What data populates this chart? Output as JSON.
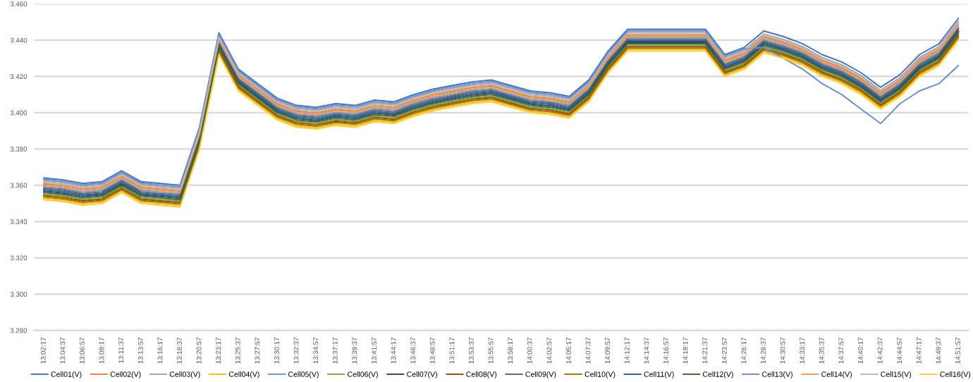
{
  "chart_data": {
    "type": "line",
    "categories": [
      "13:02:17",
      "13:04:37",
      "13:06:57",
      "13:09:17",
      "13:11:37",
      "13:13:57",
      "13:16:17",
      "13:18:37",
      "13:20:57",
      "13:23:17",
      "13:25:37",
      "13:27:57",
      "13:30:17",
      "13:32:37",
      "13:34:57",
      "13:37:17",
      "13:39:37",
      "13:41:57",
      "13:44:17",
      "13:46:37",
      "13:48:57",
      "13:51:17",
      "13:53:37",
      "13:55:57",
      "13:58:17",
      "14:00:37",
      "14:02:57",
      "14:05:17",
      "14:07:37",
      "14:09:57",
      "14:12:17",
      "14:14:37",
      "14:16:57",
      "14:19:17",
      "14:21:37",
      "14:23:57",
      "14:26:17",
      "14:28:37",
      "14:30:57",
      "14:33:17",
      "14:35:37",
      "14:37:57",
      "14:40:17",
      "14:42:37",
      "14:44:57",
      "14:47:17",
      "14:49:37",
      "14:51:57"
    ],
    "ylim": [
      3.28,
      3.46
    ],
    "yticks": [
      {
        "value": 3.28,
        "label": "3.280"
      },
      {
        "value": 3.3,
        "label": "3.300"
      },
      {
        "value": 3.32,
        "label": "3.320"
      },
      {
        "value": 3.34,
        "label": "3.340"
      },
      {
        "value": 3.36,
        "label": "3.360"
      },
      {
        "value": 3.38,
        "label": "3.380"
      },
      {
        "value": 3.4,
        "label": "3.400"
      },
      {
        "value": 3.42,
        "label": "3.420"
      },
      {
        "value": 3.44,
        "label": "3.440"
      },
      {
        "value": 3.46,
        "label": "3.460"
      }
    ],
    "grid": "y",
    "legend": "bottom",
    "marker": "none",
    "line_style": "solid",
    "series": [
      {
        "name": "Cell01(V)",
        "color": "#4472c4",
        "values": [
          3.364,
          3.363,
          3.361,
          3.362,
          3.368,
          3.362,
          3.361,
          3.36,
          3.392,
          3.444,
          3.424,
          3.416,
          3.408,
          3.404,
          3.403,
          3.405,
          3.404,
          3.407,
          3.406,
          3.41,
          3.413,
          3.415,
          3.417,
          3.418,
          3.415,
          3.412,
          3.411,
          3.409,
          3.418,
          3.434,
          3.446,
          3.446,
          3.446,
          3.446,
          3.446,
          3.432,
          3.436,
          3.445,
          3.442,
          3.438,
          3.432,
          3.428,
          3.422,
          3.414,
          3.421,
          3.432,
          3.438,
          3.452
        ]
      },
      {
        "name": "Cell02(V)",
        "color": "#ed7d31",
        "values": [
          3.3608,
          3.3598,
          3.3578,
          3.3588,
          3.3648,
          3.3588,
          3.3578,
          3.3568,
          3.3888,
          3.4408,
          3.4208,
          3.4128,
          3.4048,
          3.4008,
          3.3998,
          3.4018,
          3.4008,
          3.4038,
          3.4028,
          3.4068,
          3.4098,
          3.4118,
          3.4138,
          3.4148,
          3.4118,
          3.4088,
          3.4078,
          3.4058,
          3.4148,
          3.4308,
          3.4428,
          3.4428,
          3.4428,
          3.4428,
          3.4428,
          3.4288,
          3.4328,
          3.4418,
          3.4388,
          3.4348,
          3.4288,
          3.4248,
          3.4188,
          3.4108,
          3.4178,
          3.4288,
          3.4348,
          3.4488
        ]
      },
      {
        "name": "Cell03(V)",
        "color": "#a5a5a5",
        "values": [
          3.3624,
          3.3614,
          3.3594,
          3.3604,
          3.3664,
          3.3604,
          3.3594,
          3.3584,
          3.3904,
          3.4424,
          3.4224,
          3.4144,
          3.4064,
          3.4024,
          3.4014,
          3.4034,
          3.4024,
          3.4054,
          3.4044,
          3.4084,
          3.4114,
          3.4134,
          3.4154,
          3.4164,
          3.4134,
          3.4104,
          3.4094,
          3.4074,
          3.4164,
          3.4324,
          3.4444,
          3.4444,
          3.4444,
          3.4444,
          3.4444,
          3.4304,
          3.4344,
          3.4434,
          3.4404,
          3.4364,
          3.4304,
          3.4264,
          3.4204,
          3.4124,
          3.4194,
          3.4304,
          3.4364,
          3.4504
        ]
      },
      {
        "name": "Cell04(V)",
        "color": "#ffc000",
        "values": [
          3.3528,
          3.3518,
          3.3498,
          3.3508,
          3.3568,
          3.3508,
          3.3498,
          3.3488,
          3.3808,
          3.4328,
          3.4128,
          3.4048,
          3.3968,
          3.3928,
          3.3918,
          3.3938,
          3.3928,
          3.3958,
          3.3948,
          3.3988,
          3.4018,
          3.4038,
          3.4058,
          3.4068,
          3.4038,
          3.4008,
          3.3998,
          3.3978,
          3.4068,
          3.4228,
          3.4348,
          3.4348,
          3.4348,
          3.4348,
          3.4348,
          3.4208,
          3.4248,
          3.4338,
          3.4308,
          3.4268,
          3.4208,
          3.4168,
          3.4108,
          3.4028,
          3.4098,
          3.4208,
          3.4268,
          3.4408
        ]
      },
      {
        "name": "Cell05(V)",
        "color": "#5b9bd5",
        "values": [
          3.3592,
          3.3582,
          3.3562,
          3.3572,
          3.3632,
          3.3572,
          3.3562,
          3.3552,
          3.3872,
          3.4392,
          3.4192,
          3.4112,
          3.4032,
          3.3992,
          3.3982,
          3.4002,
          3.3992,
          3.4022,
          3.4012,
          3.4052,
          3.4082,
          3.4102,
          3.4122,
          3.4132,
          3.4102,
          3.4072,
          3.4062,
          3.4042,
          3.4132,
          3.4292,
          3.4412,
          3.4412,
          3.4412,
          3.4412,
          3.4412,
          3.4272,
          3.4312,
          3.4402,
          3.4372,
          3.4332,
          3.4272,
          3.4232,
          3.4172,
          3.4092,
          3.4162,
          3.4272,
          3.4332,
          3.4472
        ]
      },
      {
        "name": "Cell06(V)",
        "color": "#70ad47",
        "values": [
          3.3552,
          3.3542,
          3.3522,
          3.3532,
          3.3592,
          3.3532,
          3.3522,
          3.3512,
          3.3832,
          3.4352,
          3.4152,
          3.4072,
          3.3992,
          3.3952,
          3.3942,
          3.3962,
          3.3952,
          3.3982,
          3.3972,
          3.4012,
          3.4042,
          3.4062,
          3.4082,
          3.4092,
          3.4062,
          3.4032,
          3.4022,
          3.4002,
          3.4092,
          3.4252,
          3.4372,
          3.4372,
          3.4372,
          3.4372,
          3.4372,
          3.4232,
          3.4272,
          3.4362,
          3.4332,
          3.4292,
          3.4232,
          3.4192,
          3.4132,
          3.4052,
          3.4122,
          3.4232,
          3.4292,
          3.4432
        ]
      },
      {
        "name": "Cell07(V)",
        "color": "#264478",
        "values": [
          3.3568,
          3.3558,
          3.3538,
          3.3548,
          3.3608,
          3.3548,
          3.3538,
          3.3528,
          3.3848,
          3.4368,
          3.4168,
          3.4088,
          3.4008,
          3.3968,
          3.3958,
          3.3978,
          3.3968,
          3.3998,
          3.3988,
          3.4028,
          3.4058,
          3.4078,
          3.4098,
          3.4108,
          3.4078,
          3.4048,
          3.4038,
          3.4018,
          3.4108,
          3.4268,
          3.4388,
          3.4388,
          3.4388,
          3.4388,
          3.4388,
          3.4248,
          3.4288,
          3.4378,
          3.4348,
          3.4308,
          3.4248,
          3.4208,
          3.4148,
          3.4068,
          3.4138,
          3.4248,
          3.4308,
          3.4448
        ]
      },
      {
        "name": "Cell08(V)",
        "color": "#9e480e",
        "values": [
          3.3544,
          3.3534,
          3.3514,
          3.3524,
          3.3584,
          3.3524,
          3.3514,
          3.3504,
          3.3824,
          3.4344,
          3.4144,
          3.4064,
          3.3984,
          3.3944,
          3.3934,
          3.3954,
          3.3944,
          3.3974,
          3.3964,
          3.4004,
          3.4034,
          3.4054,
          3.4074,
          3.4084,
          3.4054,
          3.4024,
          3.4014,
          3.3994,
          3.4084,
          3.4244,
          3.4364,
          3.4364,
          3.4364,
          3.4364,
          3.4364,
          3.4224,
          3.4264,
          3.4354,
          3.4324,
          3.4284,
          3.4224,
          3.4184,
          3.4124,
          3.4044,
          3.4114,
          3.4224,
          3.4284,
          3.4424
        ]
      },
      {
        "name": "Cell09(V)",
        "color": "#636363",
        "values": [
          3.3584,
          3.3574,
          3.3554,
          3.3564,
          3.3624,
          3.3564,
          3.3554,
          3.3544,
          3.3864,
          3.4384,
          3.4184,
          3.4104,
          3.4024,
          3.3984,
          3.3974,
          3.3994,
          3.3984,
          3.4014,
          3.4004,
          3.4044,
          3.4074,
          3.4094,
          3.4114,
          3.4124,
          3.4094,
          3.4064,
          3.4054,
          3.4034,
          3.4124,
          3.4284,
          3.4404,
          3.4404,
          3.4404,
          3.4404,
          3.4404,
          3.4264,
          3.4304,
          3.4394,
          3.4364,
          3.4324,
          3.4264,
          3.4224,
          3.4164,
          3.4084,
          3.4154,
          3.4264,
          3.4324,
          3.4464
        ]
      },
      {
        "name": "Cell10(V)",
        "color": "#997300",
        "values": [
          3.3536,
          3.3526,
          3.3506,
          3.3516,
          3.3576,
          3.3516,
          3.3506,
          3.3496,
          3.3816,
          3.4336,
          3.4136,
          3.4056,
          3.3976,
          3.3936,
          3.3926,
          3.3946,
          3.3936,
          3.3966,
          3.3956,
          3.3996,
          3.4026,
          3.4046,
          3.4066,
          3.4076,
          3.4046,
          3.4016,
          3.4006,
          3.3986,
          3.4076,
          3.4236,
          3.4356,
          3.4356,
          3.4356,
          3.4356,
          3.4356,
          3.4216,
          3.4256,
          3.4346,
          3.4316,
          3.4276,
          3.4216,
          3.4176,
          3.4116,
          3.4036,
          3.4106,
          3.4216,
          3.4276,
          3.4416
        ]
      },
      {
        "name": "Cell11(V)",
        "color": "#255e91",
        "values": [
          3.3576,
          3.3566,
          3.3546,
          3.3556,
          3.3616,
          3.3556,
          3.3546,
          3.3536,
          3.3856,
          3.4376,
          3.4176,
          3.4096,
          3.4016,
          3.3976,
          3.3966,
          3.3986,
          3.3976,
          3.4006,
          3.3996,
          3.4036,
          3.4066,
          3.4086,
          3.4106,
          3.4116,
          3.4086,
          3.4056,
          3.4046,
          3.4026,
          3.4116,
          3.4276,
          3.4396,
          3.4396,
          3.4396,
          3.4396,
          3.4396,
          3.4256,
          3.4296,
          3.4386,
          3.4356,
          3.4316,
          3.4256,
          3.4216,
          3.4156,
          3.4076,
          3.4146,
          3.4256,
          3.4316,
          3.4456
        ]
      },
      {
        "name": "Cell12(V)",
        "color": "#43682b",
        "values": [
          3.356,
          3.355,
          3.353,
          3.354,
          3.36,
          3.354,
          3.353,
          3.352,
          3.384,
          3.436,
          3.416,
          3.408,
          3.4,
          3.396,
          3.395,
          3.397,
          3.396,
          3.399,
          3.398,
          3.402,
          3.405,
          3.407,
          3.409,
          3.41,
          3.407,
          3.404,
          3.403,
          3.401,
          3.41,
          3.426,
          3.438,
          3.438,
          3.438,
          3.438,
          3.438,
          3.424,
          3.428,
          3.437,
          3.434,
          3.43,
          3.424,
          3.42,
          3.414,
          3.406,
          3.413,
          3.424,
          3.43,
          3.444
        ]
      },
      {
        "name": "Cell13(V)",
        "color": "#698ed0",
        "values": [
          3.3632,
          3.3622,
          3.3602,
          3.3612,
          3.3672,
          3.3612,
          3.3602,
          3.3592,
          3.3912,
          3.4432,
          3.4232,
          3.4152,
          3.4072,
          3.4032,
          3.4022,
          3.4042,
          3.4032,
          3.4062,
          3.4052,
          3.4092,
          3.4122,
          3.4142,
          3.4162,
          3.4172,
          3.4142,
          3.4112,
          3.4102,
          3.4082,
          3.4172,
          3.4332,
          3.4452,
          3.4452,
          3.4452,
          3.4452,
          3.4452,
          3.4312,
          3.4352,
          3.436,
          3.43,
          3.424,
          3.416,
          3.41,
          3.402,
          3.394,
          3.405,
          3.412,
          3.416,
          3.426
        ]
      },
      {
        "name": "Cell14(V)",
        "color": "#f1975a",
        "values": [
          3.36,
          3.359,
          3.357,
          3.358,
          3.364,
          3.358,
          3.357,
          3.356,
          3.388,
          3.44,
          3.42,
          3.412,
          3.404,
          3.4,
          3.399,
          3.401,
          3.4,
          3.403,
          3.402,
          3.406,
          3.409,
          3.411,
          3.413,
          3.414,
          3.411,
          3.408,
          3.407,
          3.405,
          3.414,
          3.43,
          3.442,
          3.442,
          3.442,
          3.442,
          3.442,
          3.428,
          3.432,
          3.441,
          3.438,
          3.434,
          3.428,
          3.424,
          3.418,
          3.41,
          3.417,
          3.428,
          3.434,
          3.448
        ]
      },
      {
        "name": "Cell15(V)",
        "color": "#b7b7b7",
        "values": [
          3.3616,
          3.3606,
          3.3586,
          3.3596,
          3.3656,
          3.3596,
          3.3586,
          3.3576,
          3.3896,
          3.4416,
          3.4216,
          3.4136,
          3.4056,
          3.4016,
          3.4006,
          3.4026,
          3.4016,
          3.4046,
          3.4036,
          3.4076,
          3.4106,
          3.4126,
          3.4146,
          3.4156,
          3.4126,
          3.4096,
          3.4086,
          3.4066,
          3.4156,
          3.4316,
          3.4436,
          3.4436,
          3.4436,
          3.4436,
          3.4436,
          3.4296,
          3.4336,
          3.4426,
          3.4396,
          3.4356,
          3.4296,
          3.4256,
          3.4196,
          3.4116,
          3.4186,
          3.4296,
          3.4356,
          3.4496
        ]
      },
      {
        "name": "Cell16(V)",
        "color": "#ffcd33",
        "values": [
          3.352,
          3.351,
          3.349,
          3.35,
          3.356,
          3.35,
          3.349,
          3.348,
          3.38,
          3.432,
          3.412,
          3.404,
          3.396,
          3.392,
          3.391,
          3.393,
          3.392,
          3.395,
          3.394,
          3.398,
          3.401,
          3.403,
          3.405,
          3.406,
          3.403,
          3.4,
          3.399,
          3.397,
          3.406,
          3.422,
          3.434,
          3.434,
          3.434,
          3.434,
          3.434,
          3.42,
          3.424,
          3.433,
          3.43,
          3.426,
          3.42,
          3.416,
          3.41,
          3.402,
          3.409,
          3.42,
          3.426,
          3.44
        ]
      }
    ]
  }
}
